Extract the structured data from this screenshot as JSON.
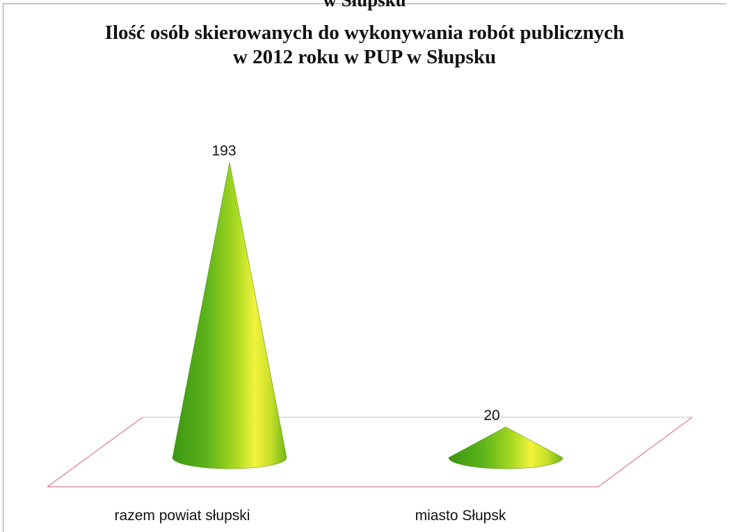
{
  "page": {
    "cut_heading": "w Słupsku"
  },
  "chart_data": {
    "type": "bar",
    "bar_shape": "cone-3d",
    "title_lines": [
      "Ilość osób skierowanych do wykonywania robót publicznych",
      "w 2012 roku w PUP w Słupsku"
    ],
    "categories": [
      "razem powiat słupski",
      "miasto Słupsk"
    ],
    "values": [
      193,
      20
    ],
    "data_labels": [
      "193",
      "20"
    ],
    "ylim": [
      0,
      200
    ],
    "grid": false,
    "legend": "none",
    "colors": {
      "cone_dark": "#3c9a14",
      "cone_mid": "#8fd11a",
      "cone_light": "#f4f43a",
      "floor_edge_front": "#d97a92",
      "floor_edge_back": "#c9c9c9",
      "frame": "#9a9a9a",
      "text": "#111111"
    }
  }
}
